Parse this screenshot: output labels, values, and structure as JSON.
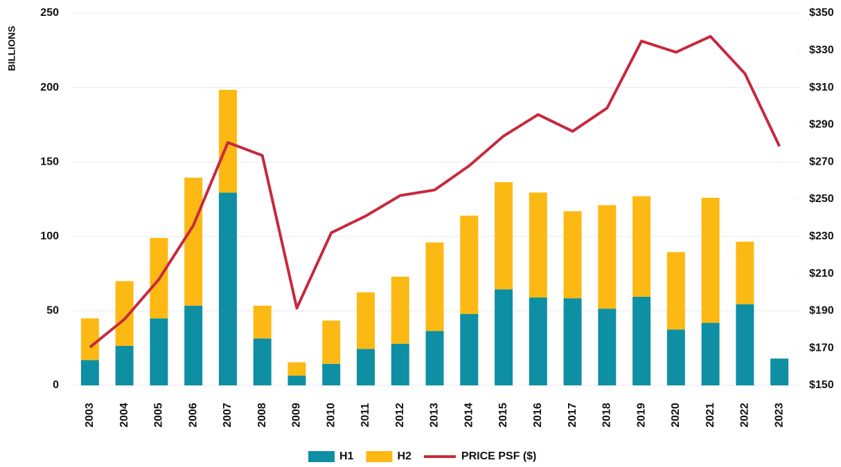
{
  "chart_data": {
    "type": "bar",
    "y_label": "BILLIONS",
    "categories": [
      "2003",
      "2004",
      "2005",
      "2006",
      "2007",
      "2008",
      "2009",
      "2010",
      "2011",
      "2012",
      "2013",
      "2014",
      "2015",
      "2016",
      "2017",
      "2018",
      "2019",
      "2020",
      "2021",
      "2022",
      "2023"
    ],
    "series": [
      {
        "name": "H1",
        "type": "bar",
        "axis": "y",
        "color": "#0e8fa3",
        "values": [
          17,
          26.5,
          45,
          53.5,
          129.5,
          31.5,
          6.5,
          14.5,
          24.5,
          28,
          36.5,
          48,
          64.5,
          59,
          58.5,
          51.5,
          59.5,
          37.5,
          42,
          54.5,
          18
        ]
      },
      {
        "name": "H2",
        "type": "bar",
        "axis": "y",
        "color": "#fdb913",
        "values": [
          28,
          43.5,
          54,
          86,
          69,
          22,
          9,
          29,
          38,
          45,
          59.5,
          66,
          72,
          70.5,
          58.5,
          69.5,
          67.5,
          52,
          84,
          42,
          null
        ]
      },
      {
        "name": "PRICE PSF ($)",
        "type": "line",
        "axis": "y2",
        "color": "#c8283c",
        "values": [
          170.5,
          185.5,
          207,
          236,
          280.5,
          273.5,
          191.5,
          232,
          241,
          252,
          255,
          268,
          284,
          295.5,
          286.5,
          299,
          335,
          329,
          337.5,
          317.5,
          278.5
        ]
      }
    ],
    "ylim": [
      0,
      250
    ],
    "yticks": [
      0,
      50,
      100,
      150,
      200,
      250
    ],
    "y2lim": [
      150,
      350
    ],
    "y2ticks": [
      {
        "value": 150,
        "label": "$150"
      },
      {
        "value": 170,
        "label": "$170"
      },
      {
        "value": 190,
        "label": "$190"
      },
      {
        "value": 210,
        "label": "$210"
      },
      {
        "value": 230,
        "label": "$230"
      },
      {
        "value": 250,
        "label": "$250"
      },
      {
        "value": 270,
        "label": "$270"
      },
      {
        "value": 290,
        "label": "$290"
      },
      {
        "value": 310,
        "label": "$310"
      },
      {
        "value": 330,
        "label": "$330"
      },
      {
        "value": 350,
        "label": "$350"
      }
    ],
    "grid": true,
    "legend": "bottom",
    "stacked": true
  }
}
